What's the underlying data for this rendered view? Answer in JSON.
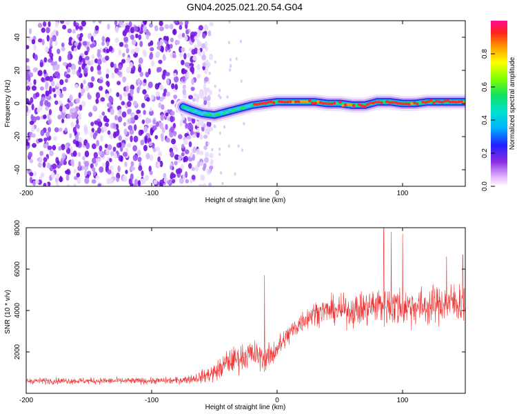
{
  "chart_data": [
    {
      "type": "heatmap",
      "title": "GN04.2025.021.20.54.G04",
      "xlabel": "Height of straight line (km)",
      "ylabel": "Frequency (Hz)",
      "xlim": [
        -200,
        150
      ],
      "ylim": [
        -50,
        50
      ],
      "xticks": [
        -200,
        -100,
        0,
        100
      ],
      "yticks": [
        -40,
        -20,
        0,
        20,
        40
      ],
      "colorbar": {
        "label": "Normalized spectral amplitude",
        "range": [
          0,
          1
        ],
        "ticks": [
          0,
          0.2,
          0.4,
          0.6,
          0.8
        ]
      },
      "ridge": {
        "x": [
          -75,
          -68,
          -60,
          -50,
          -40,
          -30,
          -20,
          -10,
          0,
          10,
          20,
          30,
          40,
          50,
          60,
          70,
          80,
          90,
          100,
          110,
          120,
          130,
          140,
          150
        ],
        "y": [
          -2,
          -4,
          -6,
          -7,
          -5,
          -3,
          -1,
          0,
          1,
          1,
          1,
          1,
          0,
          0,
          -1,
          -1,
          1,
          1,
          0,
          0,
          1,
          1,
          1,
          1
        ]
      },
      "noise_region_x": [
        -200,
        -60
      ]
    },
    {
      "type": "line",
      "xlabel": "Height of straight line (km)",
      "ylabel": "SNR (10 * v/v)",
      "xlim": [
        -200,
        150
      ],
      "ylim": [
        0,
        8000
      ],
      "xticks": [
        -200,
        -100,
        0,
        100
      ],
      "yticks": [
        2000,
        4000,
        6000,
        8000
      ],
      "color": "#ee3333",
      "envelope": {
        "x": [
          -200,
          -150,
          -100,
          -80,
          -70,
          -60,
          -50,
          -45,
          -40,
          -35,
          -30,
          -25,
          -20,
          -15,
          -10,
          -5,
          0,
          5,
          10,
          15,
          20,
          30,
          40,
          50,
          60,
          70,
          80,
          90,
          100,
          110,
          120,
          130,
          140,
          150
        ],
        "mean": [
          600,
          600,
          600,
          620,
          680,
          800,
          1000,
          1200,
          1500,
          1600,
          1700,
          1800,
          1900,
          1800,
          1700,
          1800,
          2200,
          2500,
          2900,
          3200,
          3500,
          3900,
          4000,
          4000,
          4000,
          4100,
          4300,
          4200,
          4200,
          4200,
          4200,
          4300,
          4400,
          4300
        ],
        "spread": [
          200,
          200,
          200,
          220,
          260,
          400,
          600,
          700,
          800,
          800,
          850,
          850,
          900,
          850,
          800,
          800,
          750,
          700,
          700,
          700,
          700,
          750,
          800,
          900,
          1000,
          1100,
          1300,
          1300,
          1300,
          1200,
          1200,
          1200,
          1300,
          1300
        ]
      },
      "spikes": [
        {
          "x": -10,
          "y": 5700
        },
        {
          "x": 85,
          "y": 8000
        },
        {
          "x": 91,
          "y": 7800
        },
        {
          "x": 100,
          "y": 7700
        },
        {
          "x": 135,
          "y": 6600
        },
        {
          "x": 148,
          "y": 6700
        }
      ]
    }
  ]
}
